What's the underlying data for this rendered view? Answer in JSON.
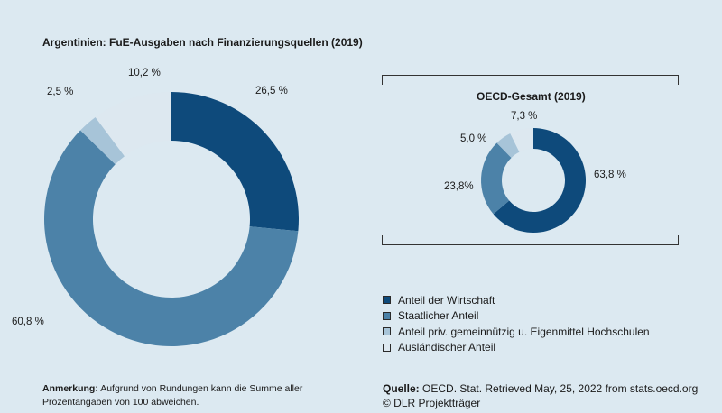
{
  "chart_data": [
    {
      "type": "pie",
      "title": "Argentinien: FuE-Ausgaben nach Finanzierungsquellen (2019)",
      "categories": [
        "Anteil der Wirtschaft",
        "Staatlicher Anteil",
        "Anteil priv. gemeinnützig u. Eigenmittel Hochschulen",
        "Ausländischer Anteil"
      ],
      "values": [
        26.5,
        60.8,
        2.5,
        10.2
      ],
      "value_labels": [
        "26,5 %",
        "60,8 %",
        "2,5 %",
        "10,2 %"
      ],
      "colors": [
        "#0e4a7b",
        "#4c82a8",
        "#a7c4d8",
        "#dde8f0"
      ],
      "donut": true
    },
    {
      "type": "pie",
      "title": "OECD-Gesamt (2019)",
      "categories": [
        "Anteil der Wirtschaft",
        "Staatlicher Anteil",
        "Anteil priv. gemeinnützig u. Eigenmittel Hochschulen",
        "Ausländischer Anteil"
      ],
      "values": [
        63.8,
        23.8,
        5.0,
        7.3
      ],
      "value_labels": [
        "63,8 %",
        "23,8%",
        "5,0 %",
        "7,3 %"
      ],
      "colors": [
        "#0e4a7b",
        "#4c82a8",
        "#a7c4d8",
        "#dde8f0"
      ],
      "donut": true
    }
  ],
  "legend": [
    {
      "label": "Anteil der Wirtschaft",
      "color": "#0e4a7b"
    },
    {
      "label": "Staatlicher Anteil",
      "color": "#4c82a8"
    },
    {
      "label": "Anteil priv. gemeinnützig u. Eigenmittel Hochschulen",
      "color": "#a7c4d8"
    },
    {
      "label": "Ausländischer Anteil",
      "color": "#dde8f0"
    }
  ],
  "note": {
    "label": "Anmerkung:",
    "text": "Aufgrund von Rundungen kann die Summe aller Prozentangaben von 100 abweichen."
  },
  "source": {
    "label": "Quelle:",
    "text": "OECD. Stat. Retrieved May, 25, 2022 from stats.oecd.org",
    "copyright": "© DLR Projektträger"
  }
}
